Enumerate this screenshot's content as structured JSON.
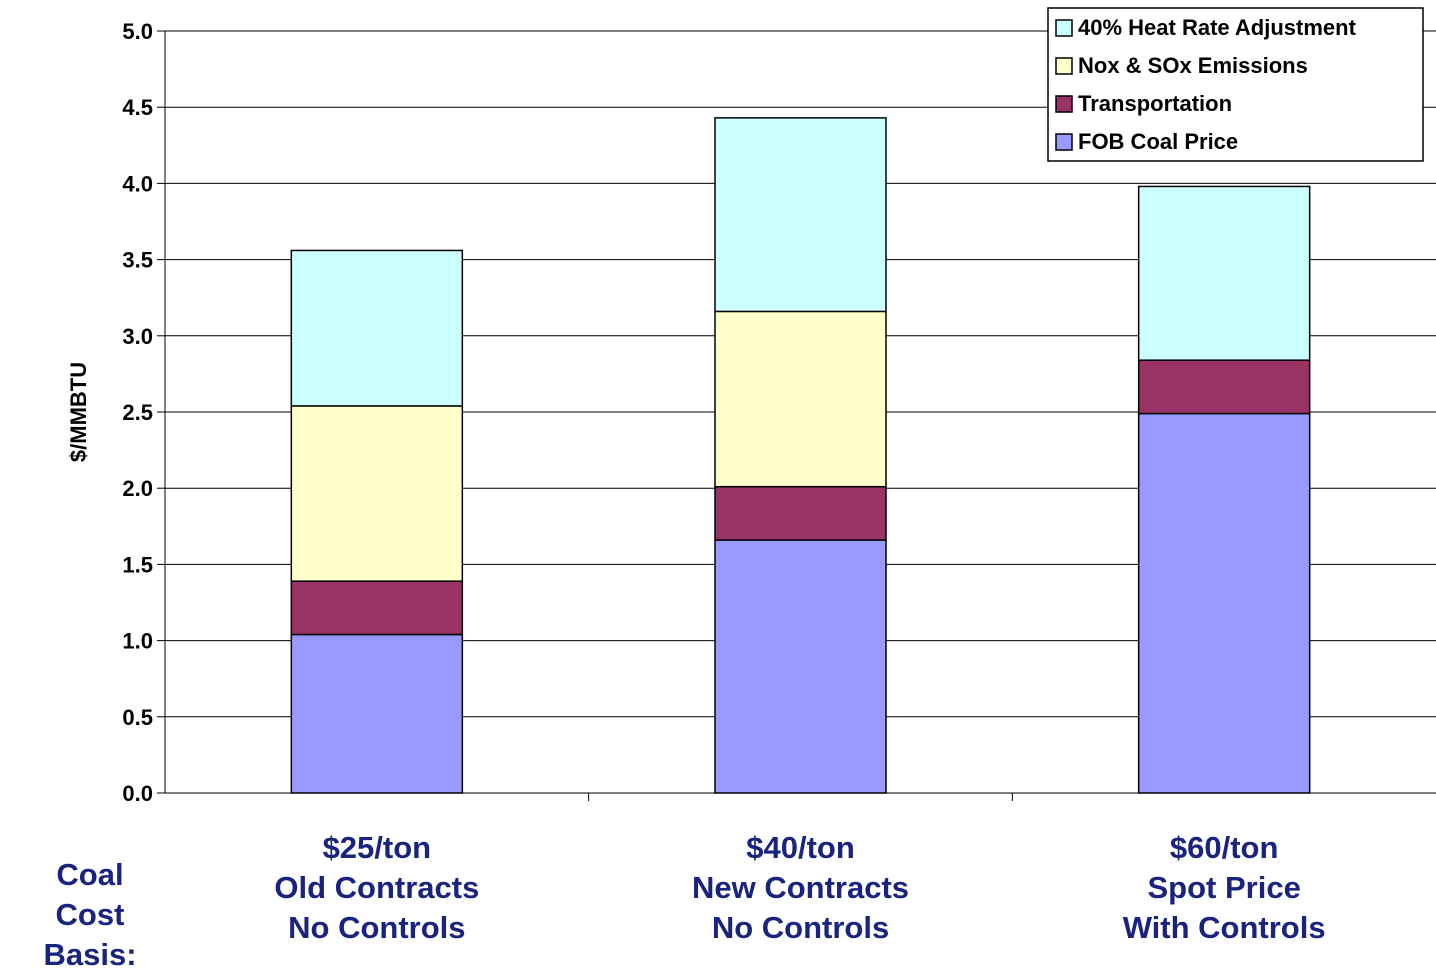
{
  "chart_data": {
    "type": "bar",
    "stacked": true,
    "categories": [
      "$25/ton",
      "$40/ton",
      "$60/ton"
    ],
    "category_lines": [
      [
        "$25/ton",
        "Old Contracts",
        "No Controls"
      ],
      [
        "$40/ton",
        "New Contracts",
        "No Controls"
      ],
      [
        "$60/ton",
        "Spot Price",
        "With Controls"
      ]
    ],
    "series": [
      {
        "name": "FOB Coal Price",
        "values": [
          1.04,
          1.66,
          2.49
        ],
        "color": "#9999ff"
      },
      {
        "name": "Transportation",
        "values": [
          0.35,
          0.35,
          0.35
        ],
        "color": "#993366"
      },
      {
        "name": "Nox & SOx Emissions",
        "values": [
          1.15,
          1.15,
          0.0
        ],
        "color": "#ffffcc"
      },
      {
        "name": "40% Heat Rate Adjustment",
        "values": [
          1.02,
          1.27,
          1.14
        ],
        "color": "#ccffff"
      }
    ],
    "legend_order": [
      3,
      2,
      1,
      0
    ],
    "ylabel": "$/MMBTU",
    "ylim": [
      0,
      5.0
    ],
    "yticks": [
      "0.0",
      "0.5",
      "1.0",
      "1.5",
      "2.0",
      "2.5",
      "3.0",
      "3.5",
      "4.0",
      "4.5",
      "5.0"
    ],
    "grid": true,
    "legend_position": "top-right"
  },
  "basis_label": "Coal Cost Basis:"
}
